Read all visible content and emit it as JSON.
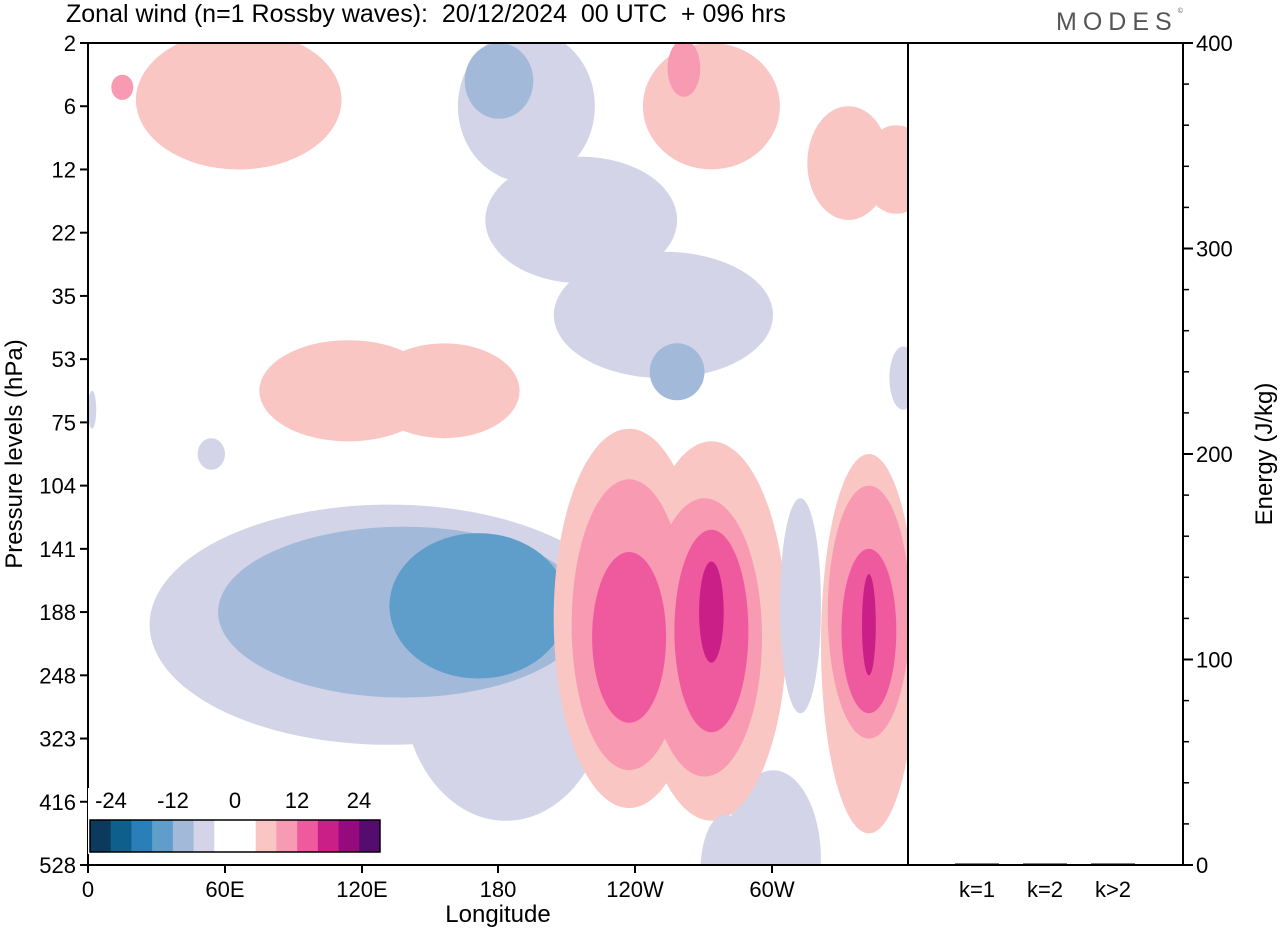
{
  "chart_data": [
    {
      "type": "heatmap",
      "title": "Zonal wind (n=1 Rossby waves):  20/12/2024  00 UTC  + 096 hrs",
      "xlabel": "Longitude",
      "ylabel": "Pressure levels (hPa)",
      "x_ticks": [
        "0",
        "60E",
        "120E",
        "180",
        "120W",
        "60W"
      ],
      "y_ticks": [
        "2",
        "6",
        "12",
        "22",
        "35",
        "53",
        "75",
        "104",
        "141",
        "188",
        "248",
        "323",
        "416",
        "528"
      ],
      "colorbar": {
        "labels": [
          "-24",
          "-12",
          "0",
          "12",
          "24"
        ],
        "colors": [
          "#0b3a5c",
          "#0f5f8d",
          "#2a7fb8",
          "#5f9ecb",
          "#a2b9da",
          "#d3d4e7",
          "#ffffff",
          "#ffffff",
          "#f9c6c4",
          "#f79ab2",
          "#ef5a9f",
          "#c91f87",
          "#950a7c",
          "#560b6e"
        ]
      },
      "regions": [
        {
          "level": -4,
          "cx": 4,
          "cy": 0.6,
          "rx": 1.3,
          "ry": 1.2
        },
        {
          "level": -4,
          "cx": 0.3,
          "cy": 2.6,
          "rx": 1.8,
          "ry": 1.0
        },
        {
          "level": -4,
          "cx": 3.3,
          "cy": 3.8,
          "rx": 1.3,
          "ry": 0.8
        },
        {
          "level": 4,
          "cx": 1.2,
          "cy": 4.7,
          "rx": 1.8,
          "ry": 0.9
        },
        {
          "level": 4,
          "cx": 9.8,
          "cy": 0.3,
          "rx": 1.2,
          "ry": 0.8
        },
        {
          "level": 4,
          "cx": 9.5,
          "cy": 1.4,
          "rx": 1.2,
          "ry": 0.9
        },
        {
          "level": 4,
          "cx": 5.7,
          "cy": 2.8,
          "rx": 1.0,
          "ry": 1.6
        },
        {
          "level": -4,
          "cx": 10.6,
          "cy": 5.5,
          "rx": 0.3,
          "ry": 0.5
        },
        {
          "level": -4,
          "cx": 11.1,
          "cy": 8.8,
          "rx": 0.4,
          "ry": 1.4
        }
      ]
    },
    {
      "type": "bar",
      "categories": [
        "k=1",
        "k=2",
        "k>2"
      ],
      "values": [
        0.5,
        0.4,
        0.4
      ],
      "ylabel": "Energy (J/kg)",
      "ylim": [
        0,
        400
      ],
      "y_ticks": [
        "0",
        "100",
        "200",
        "300",
        "400"
      ]
    }
  ],
  "logo": {
    "text": "MODES",
    "mark": "©"
  }
}
